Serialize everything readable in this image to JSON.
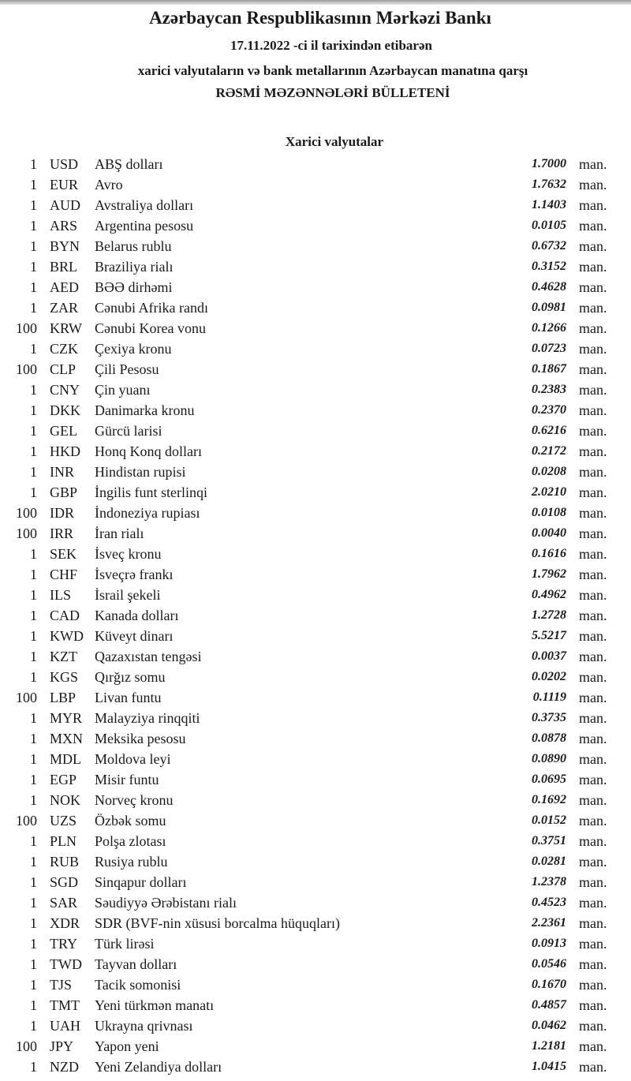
{
  "header": {
    "title": "Azərbaycan Respublikasının Mərkəzi Bankı",
    "date_line": "17.11.2022 -ci il tarixindən etibarən",
    "subtitle": "xarici valyutaların və bank metallarının Azərbaycan manatına qarşı",
    "bulletin": "RƏSMİ MƏZƏNNƏLƏRİ BÜLLETENİ"
  },
  "section_title": "Xarici valyutalar",
  "unit": "man.",
  "rates": [
    {
      "qty": "1",
      "code": "USD",
      "name": "ABŞ dolları",
      "value": "1.7000"
    },
    {
      "qty": "1",
      "code": "EUR",
      "name": "Avro",
      "value": "1.7632"
    },
    {
      "qty": "1",
      "code": "AUD",
      "name": "Avstraliya dolları",
      "value": "1.1403"
    },
    {
      "qty": "1",
      "code": "ARS",
      "name": "Argentina pesosu",
      "value": "0.0105"
    },
    {
      "qty": "1",
      "code": "BYN",
      "name": "Belarus rublu",
      "value": "0.6732"
    },
    {
      "qty": "1",
      "code": "BRL",
      "name": "Braziliya rialı",
      "value": "0.3152"
    },
    {
      "qty": "1",
      "code": "AED",
      "name": "BƏƏ dirhəmi",
      "value": "0.4628"
    },
    {
      "qty": "1",
      "code": "ZAR",
      "name": "Cənubi Afrika randı",
      "value": "0.0981"
    },
    {
      "qty": "100",
      "code": "KRW",
      "name": "Cənubi Korea vonu",
      "value": "0.1266"
    },
    {
      "qty": "1",
      "code": "CZK",
      "name": "Çexiya kronu",
      "value": "0.0723"
    },
    {
      "qty": "100",
      "code": "CLP",
      "name": "Çili Pesosu",
      "value": "0.1867"
    },
    {
      "qty": "1",
      "code": "CNY",
      "name": "Çin yuanı",
      "value": "0.2383"
    },
    {
      "qty": "1",
      "code": "DKK",
      "name": "Danimarka kronu",
      "value": "0.2370"
    },
    {
      "qty": "1",
      "code": "GEL",
      "name": "Gürcü larisi",
      "value": "0.6216"
    },
    {
      "qty": "1",
      "code": "HKD",
      "name": "Honq Konq dolları",
      "value": "0.2172"
    },
    {
      "qty": "1",
      "code": "INR",
      "name": "Hindistan rupisi",
      "value": "0.0208"
    },
    {
      "qty": "1",
      "code": "GBP",
      "name": "İngilis funt sterlinqi",
      "value": "2.0210"
    },
    {
      "qty": "100",
      "code": "IDR",
      "name": "İndoneziya rupiası",
      "value": "0.0108"
    },
    {
      "qty": "100",
      "code": "IRR",
      "name": "İran rialı",
      "value": "0.0040"
    },
    {
      "qty": "1",
      "code": "SEK",
      "name": "İsveç kronu",
      "value": "0.1616"
    },
    {
      "qty": "1",
      "code": "CHF",
      "name": "İsveçrə frankı",
      "value": "1.7962"
    },
    {
      "qty": "1",
      "code": "ILS",
      "name": "İsrail şekeli",
      "value": "0.4962"
    },
    {
      "qty": "1",
      "code": "CAD",
      "name": "Kanada dolları",
      "value": "1.2728"
    },
    {
      "qty": "1",
      "code": "KWD",
      "name": "Küveyt dinarı",
      "value": "5.5217"
    },
    {
      "qty": "1",
      "code": "KZT",
      "name": "Qazaxıstan tengəsi",
      "value": "0.0037"
    },
    {
      "qty": "1",
      "code": "KGS",
      "name": "Qırğız somu",
      "value": "0.0202"
    },
    {
      "qty": "100",
      "code": "LBP",
      "name": "Livan funtu",
      "value": "0.1119"
    },
    {
      "qty": "1",
      "code": "MYR",
      "name": "Malayziya rinqqiti",
      "value": "0.3735"
    },
    {
      "qty": "1",
      "code": "MXN",
      "name": "Meksika pesosu",
      "value": "0.0878"
    },
    {
      "qty": "1",
      "code": "MDL",
      "name": "Moldova leyi",
      "value": "0.0890"
    },
    {
      "qty": "1",
      "code": "EGP",
      "name": "Misir funtu",
      "value": "0.0695"
    },
    {
      "qty": "1",
      "code": "NOK",
      "name": "Norveç kronu",
      "value": "0.1692"
    },
    {
      "qty": "100",
      "code": "UZS",
      "name": "Özbək somu",
      "value": "0.0152"
    },
    {
      "qty": "1",
      "code": "PLN",
      "name": "Polşa zlotası",
      "value": "0.3751"
    },
    {
      "qty": "1",
      "code": "RUB",
      "name": "Rusiya rublu",
      "value": "0.0281"
    },
    {
      "qty": "1",
      "code": "SGD",
      "name": "Sinqapur dolları",
      "value": "1.2378"
    },
    {
      "qty": "1",
      "code": "SAR",
      "name": "Səudiyyə Ərəbistanı rialı",
      "value": "0.4523"
    },
    {
      "qty": "1",
      "code": "XDR",
      "name": "SDR (BVF-nin xüsusi borcalma hüquqları)",
      "value": "2.2361"
    },
    {
      "qty": "1",
      "code": "TRY",
      "name": "Türk lirəsi",
      "value": "0.0913"
    },
    {
      "qty": "1",
      "code": "TWD",
      "name": "Tayvan dolları",
      "value": "0.0546"
    },
    {
      "qty": "1",
      "code": "TJS",
      "name": "Tacik somonisi",
      "value": "0.1670"
    },
    {
      "qty": "1",
      "code": "TMT",
      "name": "Yeni türkmən manatı",
      "value": "0.4857"
    },
    {
      "qty": "1",
      "code": "UAH",
      "name": "Ukrayna qrivnası",
      "value": "0.0462"
    },
    {
      "qty": "100",
      "code": "JPY",
      "name": "Yapon yeni",
      "value": "1.2181"
    },
    {
      "qty": "1",
      "code": "NZD",
      "name": "Yeni Zelandiya dolları",
      "value": "1.0415"
    }
  ]
}
